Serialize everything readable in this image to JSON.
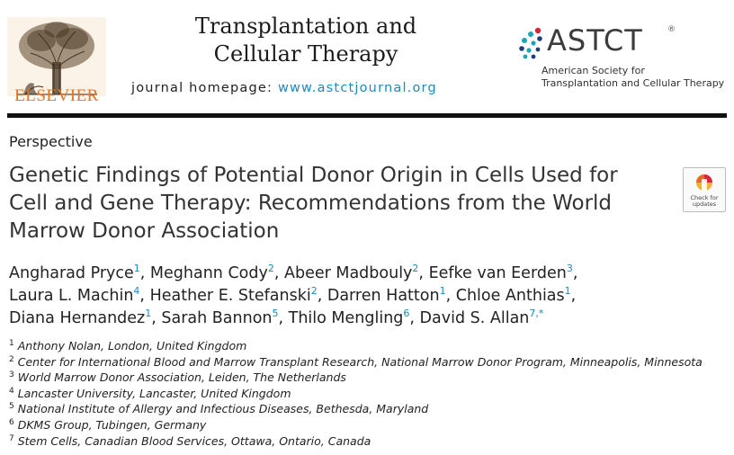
{
  "header": {
    "publisher": "ELSEVIER",
    "journal_title_line1": "Transplantation and",
    "journal_title_line2": "Cellular Therapy",
    "homepage_label": "journal homepage: ",
    "homepage_url": "www.astctjournal.org",
    "society_logo": {
      "name": "ASTCT",
      "registered_mark": "®",
      "subtitle_line1": "American Society for",
      "subtitle_line2": "Transplantation and Cellular Therapy"
    }
  },
  "article": {
    "section": "Perspective",
    "title_lines": [
      "Genetic Findings of Potential Donor Origin in Cells Used for",
      "Cell and Gene Therapy: Recommendations from the World",
      "Marrow Donor Association"
    ],
    "updates_badge": {
      "line1": "Check for",
      "line2": "updates"
    },
    "authors": [
      {
        "name": "Angharad Pryce",
        "aff": "1",
        "sep": ", "
      },
      {
        "name": "Meghann Cody",
        "aff": "2",
        "sep": ", "
      },
      {
        "name": "Abeer Madbouly",
        "aff": "2",
        "sep": ", "
      },
      {
        "name": "Eefke van Eerden",
        "aff": "3",
        "sep": ","
      },
      {
        "name": "Laura L. Machin",
        "aff": "4",
        "sep": ", "
      },
      {
        "name": "Heather E. Stefanski",
        "aff": "2",
        "sep": ", "
      },
      {
        "name": "Darren Hatton",
        "aff": "1",
        "sep": ", "
      },
      {
        "name": "Chloe Anthias",
        "aff": "1",
        "sep": ","
      },
      {
        "name": "Diana Hernandez",
        "aff": "1",
        "sep": ", "
      },
      {
        "name": "Sarah Bannon",
        "aff": "5",
        "sep": ", "
      },
      {
        "name": "Thilo Mengling",
        "aff": "6",
        "sep": ", "
      },
      {
        "name": "David S. Allan",
        "aff": "7,*",
        "sep": ""
      }
    ],
    "affiliations": [
      {
        "num": "1",
        "text": "Anthony Nolan, London, United Kingdom"
      },
      {
        "num": "2",
        "text": "Center for International Blood and Marrow Transplant Research, National Marrow Donor Program, Minneapolis, Minnesota"
      },
      {
        "num": "3",
        "text": "World Marrow Donor Association, Leiden, The Netherlands"
      },
      {
        "num": "4",
        "text": "Lancaster University, Lancaster, United Kingdom"
      },
      {
        "num": "5",
        "text": "National Institute of Allergy and Infectious Diseases, Bethesda, Maryland"
      },
      {
        "num": "6",
        "text": "DKMS Group, Tubingen, Germany"
      },
      {
        "num": "7",
        "text": "Stem Cells, Canadian Blood Services, Ottawa, Ontario, Canada"
      }
    ]
  },
  "colors": {
    "elsevier_orange": "#e9711c",
    "link_blue": "#1a8bbf",
    "astct_teal": "#1aa6b7",
    "astct_red": "#d6283b",
    "astct_navy": "#1f3f7a"
  }
}
